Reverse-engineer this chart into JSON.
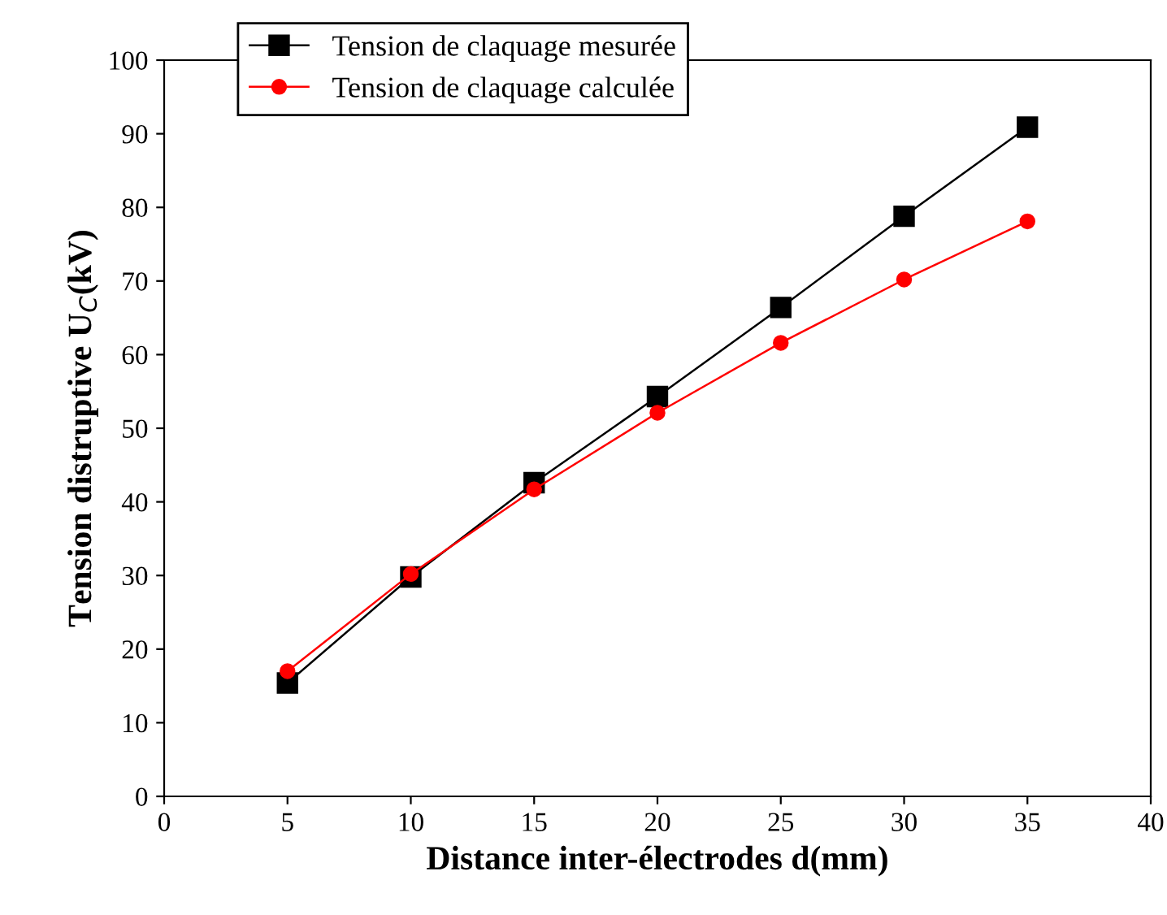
{
  "chart_data": {
    "type": "line",
    "xlabel": "Distance inter-électrodes d(mm)",
    "ylabel": "Tension distruptive U$_{C}$(kV)",
    "x": [
      5,
      10,
      15,
      20,
      25,
      30,
      35
    ],
    "series": [
      {
        "name": "Tension de claquage mesurée",
        "color": "#000000",
        "marker": "square",
        "values": [
          15.4,
          29.8,
          42.6,
          54.3,
          66.4,
          78.8,
          90.9
        ]
      },
      {
        "name": "Tension de claquage calculée",
        "color": "#ff0000",
        "marker": "circle",
        "values": [
          17.0,
          30.2,
          41.7,
          52.1,
          61.6,
          70.2,
          78.1
        ]
      }
    ],
    "xlim": [
      0,
      40
    ],
    "xticks": [
      0,
      5,
      10,
      15,
      20,
      25,
      30,
      35,
      40
    ],
    "ylim": [
      0,
      100
    ],
    "yticks": [
      0,
      10,
      20,
      30,
      40,
      50,
      60,
      70,
      80,
      90,
      100
    ],
    "grid": false,
    "legend": "top left",
    "line_style": "solid"
  }
}
